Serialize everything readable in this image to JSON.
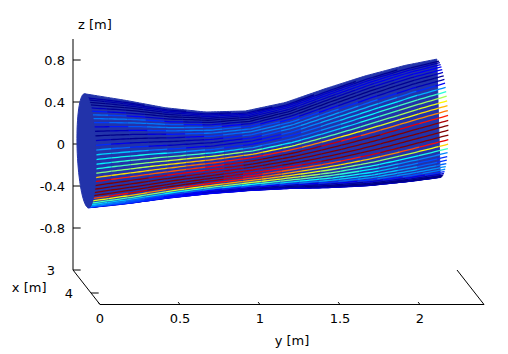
{
  "chart_data": {
    "type": "tube3d",
    "xlabel": "x [m]",
    "ylabel": "y [m]",
    "zlabel": "z [m]",
    "xlim": [
      3,
      4.5
    ],
    "ylim": [
      0,
      2.4
    ],
    "zlim": [
      -1.2,
      1.0
    ],
    "xticks": [
      3,
      4
    ],
    "yticks": [
      0,
      0.5,
      1,
      1.5,
      2
    ],
    "zticks": [
      -0.8,
      -0.4,
      0,
      0.4,
      0.8
    ],
    "color": "#2233aa",
    "tube": {
      "x_center": 3.75,
      "y": [
        0,
        0.25,
        0.5,
        0.75,
        1,
        1.25,
        1.5,
        1.75,
        2,
        2.2
      ],
      "z_center": [
        0.1,
        0.09,
        0.08,
        0.08,
        0.1,
        0.15,
        0.22,
        0.29,
        0.36,
        0.41
      ],
      "radius": [
        0.53,
        0.48,
        0.42,
        0.38,
        0.37,
        0.4,
        0.46,
        0.51,
        0.54,
        0.55
      ]
    }
  }
}
